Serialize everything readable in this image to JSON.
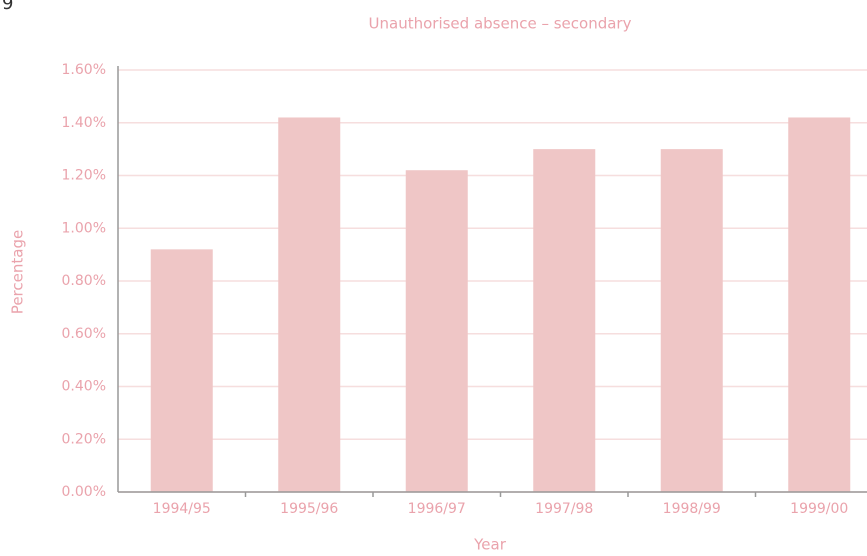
{
  "page_number": "9",
  "chart_data": {
    "type": "bar",
    "title": "Unauthorised absence – secondary",
    "x_label": "Year",
    "y_label": "Percentage",
    "categories": [
      "1994/95",
      "1995/96",
      "1996/97",
      "1997/98",
      "1998/99",
      "1999/00"
    ],
    "values": [
      0.92,
      1.42,
      1.22,
      1.3,
      1.3,
      1.42
    ],
    "color": "#efc6c6",
    "ylim": [
      0,
      1.6
    ],
    "yticks": [
      {
        "value": 0,
        "label": "0.00%"
      },
      {
        "value": 0.2,
        "label": "0.20%"
      },
      {
        "value": 0.4,
        "label": "0.40%"
      },
      {
        "value": 0.6,
        "label": "0.60%"
      },
      {
        "value": 0.8,
        "label": "0.80%"
      },
      {
        "value": 1.0,
        "label": "1.00%"
      },
      {
        "value": 1.2,
        "label": "1.20%"
      },
      {
        "value": 1.4,
        "label": "1.40%"
      },
      {
        "value": 1.6,
        "label": "1.60%"
      }
    ],
    "grid": true
  }
}
